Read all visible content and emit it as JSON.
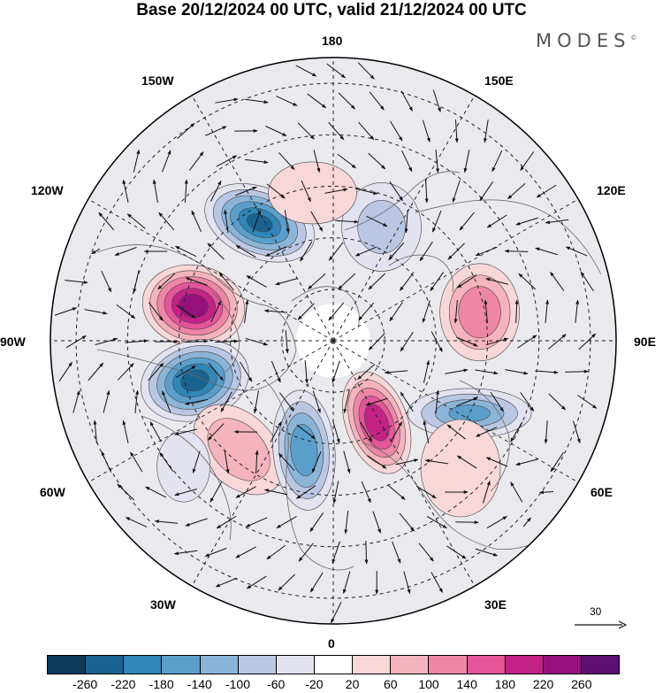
{
  "title": "Base 20/12/2024 00 UTC, valid 21/12/2024 00 UTC",
  "brand": {
    "name": "MODES",
    "mark": "©"
  },
  "longitude_labels": {
    "top": "180",
    "bottom": "0",
    "left": "90W",
    "right": "90E",
    "upper_left_1": "150W",
    "upper_left_2": "120W",
    "lower_left_1": "60W",
    "lower_left_2": "30W",
    "upper_right_1": "150E",
    "upper_right_2": "120E",
    "lower_right_1": "60E",
    "lower_right_2": "30E"
  },
  "reference_vector": {
    "label": "30"
  },
  "colorbar": {
    "colors": [
      "#0d3c5a",
      "#1a6391",
      "#2f86b8",
      "#5a9fcb",
      "#8bb5d8",
      "#b9c7e2",
      "#e2e2f0",
      "#ffffff",
      "#f8d7d9",
      "#f4b3bd",
      "#ee86a6",
      "#e4559a",
      "#c42286",
      "#98107c",
      "#5d1071"
    ],
    "ticks": [
      "-260",
      "-220",
      "-180",
      "-140",
      "-100",
      "-60",
      "-20",
      "20",
      "60",
      "100",
      "140",
      "180",
      "220",
      "260"
    ]
  },
  "anomalies": [
    {
      "lon": -148,
      "colat": 27,
      "value": -240,
      "rx": 65,
      "ry": 40,
      "rot": 22
    },
    {
      "lon": -104,
      "colat": 28,
      "value": 260,
      "rx": 58,
      "ry": 46,
      "rot": 10
    },
    {
      "lon": -74,
      "colat": 28,
      "value": -250,
      "rx": 62,
      "ry": 45,
      "rot": -15
    },
    {
      "lon": -41,
      "colat": 28,
      "value": 110,
      "rx": 60,
      "ry": 40,
      "rot": 45
    },
    {
      "lon": -15,
      "colat": 22,
      "value": -190,
      "rx": 35,
      "ry": 68,
      "rot": -5
    },
    {
      "lon": 28,
      "colat": 18,
      "value": 230,
      "rx": 35,
      "ry": 60,
      "rot": -20
    },
    {
      "lon": 62,
      "colat": 30,
      "value": -160,
      "rx": 70,
      "ry": 28,
      "rot": 0
    },
    {
      "lon": 101,
      "colat": 29,
      "value": 150,
      "rx": 45,
      "ry": 55,
      "rot": 0
    },
    {
      "lon": 157,
      "colat": 24,
      "value": -80,
      "rx": 45,
      "ry": 50,
      "rot": 0
    },
    {
      "lon": -172,
      "colat": 29,
      "value": 70,
      "rx": 50,
      "ry": 35,
      "rot": 0
    },
    {
      "lon": -50,
      "colat": 38,
      "value": -60,
      "rx": 30,
      "ry": 40,
      "rot": 0
    },
    {
      "lon": 45,
      "colat": 35,
      "value": 70,
      "rx": 45,
      "ry": 55,
      "rot": 0
    }
  ]
}
